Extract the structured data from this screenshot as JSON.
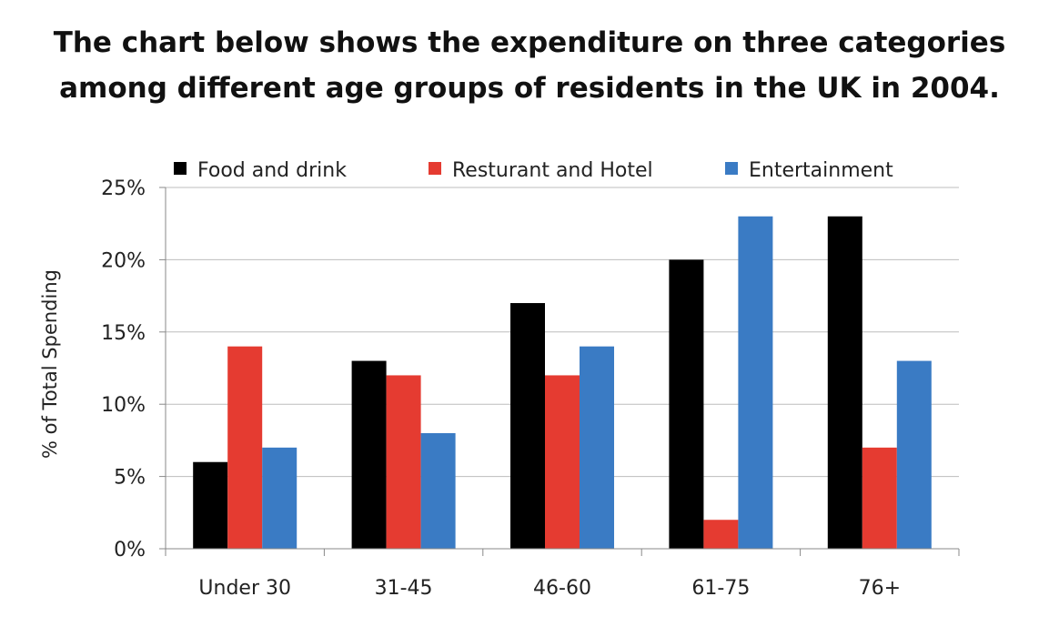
{
  "heading": {
    "line1": "The chart below shows the expenditure on three categories",
    "line2": "among different age groups of residents in the UK in 2004."
  },
  "chart_data": {
    "type": "bar",
    "categories": [
      "Under 30",
      "31-45",
      "46-60",
      "61-75",
      "76+"
    ],
    "series": [
      {
        "name": "Food and drink",
        "color": "#000000",
        "values": [
          6,
          13,
          17,
          20,
          23
        ]
      },
      {
        "name": "Resturant and Hotel",
        "color": "#e53b31",
        "values": [
          14,
          12,
          12,
          2,
          7
        ]
      },
      {
        "name": "Entertainment",
        "color": "#3a7bc4",
        "values": [
          7,
          8,
          14,
          23,
          13
        ]
      }
    ],
    "title": "",
    "xlabel": "",
    "ylabel": "% of Total Spending",
    "ylim": [
      0,
      25
    ],
    "yticks": [
      0,
      5,
      10,
      15,
      20,
      25
    ],
    "ytick_labels": [
      "0%",
      "5%",
      "10%",
      "15%",
      "20%",
      "25%"
    ],
    "grid": true,
    "legend": "top"
  }
}
